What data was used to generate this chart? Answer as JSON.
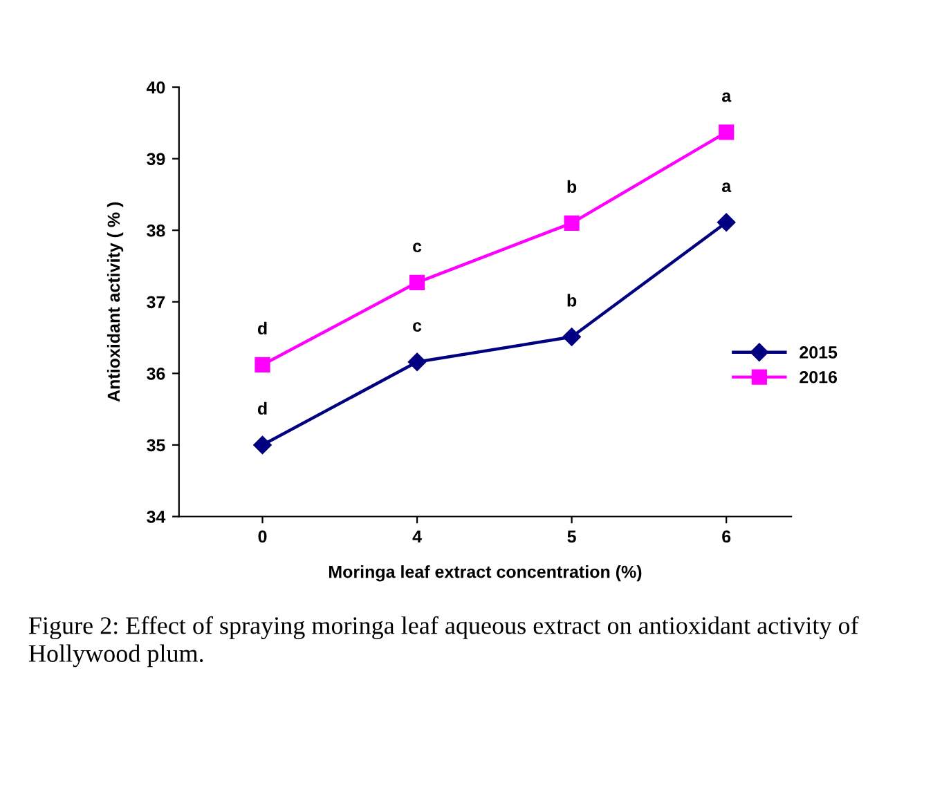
{
  "chart_data": {
    "type": "line",
    "categories": [
      "0",
      "4",
      "5",
      "6"
    ],
    "xlabel": "Moringa leaf extract concentration (%)",
    "ylabel": "Antioxidant activity ( % )",
    "ylim": [
      34,
      40
    ],
    "yticks": [
      34,
      35,
      36,
      37,
      38,
      39,
      40
    ],
    "grid": false,
    "legend": "right",
    "series": [
      {
        "name": "2015",
        "color": "#000080",
        "marker": "diamond",
        "values": [
          35.0,
          36.16,
          36.51,
          38.11
        ]
      },
      {
        "name": "2016",
        "color": "#ff00ff",
        "marker": "square",
        "values": [
          36.12,
          37.27,
          38.1,
          39.37
        ]
      }
    ],
    "annotations": [
      {
        "text": "d",
        "x": "0",
        "y": 35.0
      },
      {
        "text": "c",
        "x": "4",
        "y": 36.16
      },
      {
        "text": "b",
        "x": "5",
        "y": 36.51
      },
      {
        "text": "a",
        "x": "6",
        "y": 38.11
      },
      {
        "text": "d",
        "x": "0",
        "y": 36.12
      },
      {
        "text": "c",
        "x": "4",
        "y": 37.27
      },
      {
        "text": "b",
        "x": "5",
        "y": 38.1
      },
      {
        "text": "a",
        "x": "6",
        "y": 39.37
      },
      "Figure 2: Effect of spraying moringa leaf aqueous extract on antioxidant activity of Hollywood plum."
    ]
  }
}
